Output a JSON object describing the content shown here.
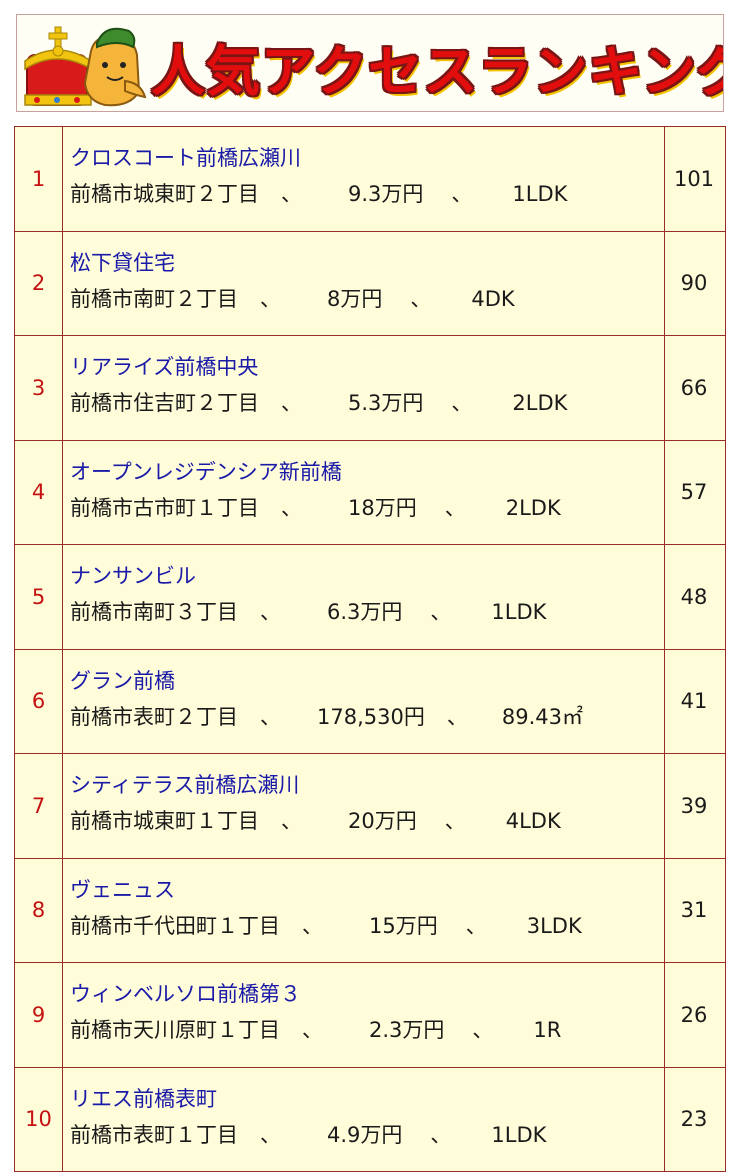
{
  "header": {
    "title": "人気アクセスランキング",
    "colors": {
      "title": "#e20e0e",
      "outline": "#7a1515",
      "shadow": "#f2c400",
      "crown": "#d81a1a",
      "gold": "#f1c40f"
    },
    "icon": "crown-mascot-icon"
  },
  "colors": {
    "rank": "#c41212",
    "name": "#1a1aa8",
    "cell_bg": "#fffcd9",
    "border": "#9b2a2a"
  },
  "ranking": [
    {
      "rank": "1",
      "name": "クロスコート前橋広瀬川",
      "address": "前橋市城東町２丁目",
      "price": "9.3万円",
      "spec": "1LDK",
      "count": "101"
    },
    {
      "rank": "2",
      "name": "松下貸住宅",
      "address": "前橋市南町２丁目",
      "price": "8万円",
      "spec": "4DK",
      "count": "90"
    },
    {
      "rank": "3",
      "name": "リアライズ前橋中央",
      "address": "前橋市住吉町２丁目",
      "price": "5.3万円",
      "spec": "2LDK",
      "count": "66"
    },
    {
      "rank": "4",
      "name": "オープンレジデンシア新前橋",
      "address": "前橋市古市町１丁目",
      "price": "18万円",
      "spec": "2LDK",
      "count": "57"
    },
    {
      "rank": "5",
      "name": "ナンサンビル",
      "address": "前橋市南町３丁目",
      "price": "6.3万円",
      "spec": "1LDK",
      "count": "48"
    },
    {
      "rank": "6",
      "name": "グラン前橋",
      "address": "前橋市表町２丁目",
      "price": "178,530円",
      "spec": "89.43㎡",
      "count": "41"
    },
    {
      "rank": "7",
      "name": "シティテラス前橋広瀬川",
      "address": "前橋市城東町１丁目",
      "price": "20万円",
      "spec": "4LDK",
      "count": "39"
    },
    {
      "rank": "8",
      "name": "ヴェニュス",
      "address": "前橋市千代田町１丁目",
      "price": "15万円",
      "spec": "3LDK",
      "count": "31"
    },
    {
      "rank": "9",
      "name": "ウィンベルソロ前橋第３",
      "address": "前橋市天川原町１丁目",
      "price": "2.3万円",
      "spec": "1R",
      "count": "26"
    },
    {
      "rank": "10",
      "name": "リエス前橋表町",
      "address": "前橋市表町１丁目",
      "price": "4.9万円",
      "spec": "1LDK",
      "count": "23"
    }
  ],
  "separator": "、"
}
